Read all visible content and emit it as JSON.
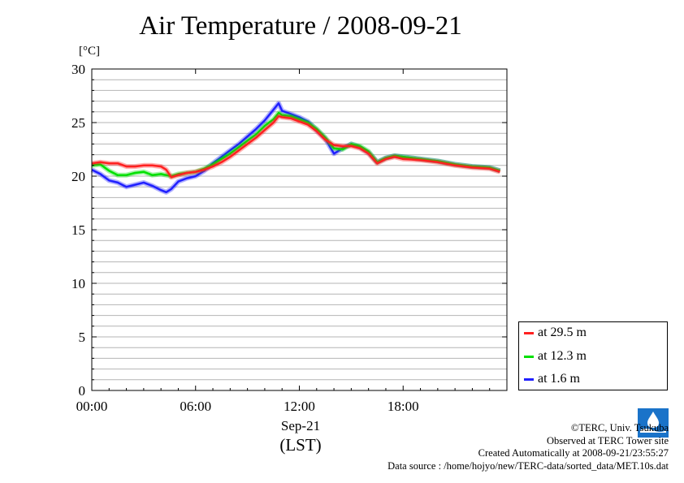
{
  "title": "Air Temperature / 2008-09-21",
  "y_unit": "[°C]",
  "x_label_date": "Sep-21",
  "x_label_tz": "(LST)",
  "legend": [
    {
      "label": "at 29.5 m",
      "color": "#ff2020"
    },
    {
      "label": "at 12.3 m",
      "color": "#00e000"
    },
    {
      "label": "at 1.6 m",
      "color": "#2020ff"
    }
  ],
  "credits": [
    "©TERC, Univ. Tsukuba",
    "Observed at TERC Tower site",
    "Created Automatically at 2008-09-21/23:55:27",
    "Data source : /home/hojyo/new/TERC-data/sorted_data/MET.10s.dat"
  ],
  "logo_icon": "terc-logo-icon",
  "chart_data": {
    "type": "line",
    "title": "Air Temperature / 2008-09-21",
    "ylabel": "[°C]",
    "xlabel": "Sep-21 (LST)",
    "xlim": [
      0,
      24
    ],
    "ylim": [
      0,
      30
    ],
    "x_ticks": [
      {
        "value": 0,
        "label": "00:00"
      },
      {
        "value": 6,
        "label": "06:00"
      },
      {
        "value": 12,
        "label": "12:00"
      },
      {
        "value": 18,
        "label": "18:00"
      }
    ],
    "y_ticks": [
      0,
      5,
      10,
      15,
      20,
      25,
      30
    ],
    "grid": "horizontal every 1°C",
    "legend_position": "bottom-right, outside plot",
    "series": [
      {
        "name": "at 29.5 m",
        "color": "#ff2020",
        "x": [
          0,
          0.5,
          1,
          1.5,
          2,
          2.5,
          3,
          3.5,
          4,
          4.3,
          4.6,
          5,
          5.5,
          6,
          6.5,
          7,
          7.5,
          8,
          8.5,
          9,
          9.5,
          10,
          10.5,
          10.8,
          11,
          11.5,
          12,
          12.5,
          13,
          13.5,
          14,
          14.5,
          15,
          15.5,
          16,
          16.5,
          17,
          17.5,
          18,
          19,
          20,
          21,
          22,
          23,
          23.6
        ],
        "y": [
          21.2,
          21.3,
          21.2,
          21.2,
          20.9,
          20.9,
          21.0,
          21.0,
          20.9,
          20.6,
          19.9,
          20.1,
          20.3,
          20.4,
          20.6,
          20.9,
          21.3,
          21.8,
          22.4,
          23.0,
          23.6,
          24.3,
          25.0,
          25.6,
          25.5,
          25.4,
          25.1,
          24.8,
          24.2,
          23.4,
          22.9,
          22.8,
          22.8,
          22.6,
          22.1,
          21.2,
          21.6,
          21.8,
          21.6,
          21.5,
          21.3,
          21.0,
          20.8,
          20.7,
          20.4
        ]
      },
      {
        "name": "at 12.3 m",
        "color": "#00e000",
        "x": [
          0,
          0.5,
          1,
          1.5,
          2,
          2.5,
          3,
          3.5,
          4,
          4.3,
          4.6,
          5,
          5.5,
          6,
          6.5,
          7,
          7.5,
          8,
          8.5,
          9,
          9.5,
          10,
          10.5,
          10.8,
          11,
          11.5,
          12,
          12.5,
          13,
          13.5,
          14,
          14.5,
          15,
          15.5,
          16,
          16.5,
          17,
          17.5,
          18,
          19,
          20,
          21,
          22,
          23,
          23.6
        ],
        "y": [
          21.0,
          21.1,
          20.5,
          20.1,
          20.1,
          20.3,
          20.4,
          20.1,
          20.2,
          20.1,
          20.0,
          20.2,
          20.3,
          20.4,
          20.7,
          21.1,
          21.6,
          22.1,
          22.7,
          23.3,
          23.9,
          24.7,
          25.3,
          25.9,
          25.7,
          25.6,
          25.3,
          25.0,
          24.4,
          23.6,
          22.6,
          22.5,
          23.0,
          22.8,
          22.3,
          21.3,
          21.7,
          21.9,
          21.8,
          21.6,
          21.4,
          21.1,
          20.9,
          20.8,
          20.5
        ]
      },
      {
        "name": "at 1.6 m",
        "color": "#2020ff",
        "x": [
          0,
          0.5,
          1,
          1.5,
          2,
          2.5,
          3,
          3.5,
          4,
          4.3,
          4.6,
          5,
          5.5,
          6,
          6.5,
          7,
          7.5,
          8,
          8.5,
          9,
          9.5,
          10,
          10.5,
          10.8,
          11,
          11.5,
          12,
          12.5,
          13,
          13.5,
          14,
          14.5,
          15,
          15.5,
          16,
          16.5,
          17,
          17.5,
          18,
          19,
          20,
          21,
          22,
          23,
          23.6
        ],
        "y": [
          20.6,
          20.2,
          19.6,
          19.4,
          19.0,
          19.2,
          19.4,
          19.1,
          18.7,
          18.5,
          18.8,
          19.5,
          19.8,
          20.0,
          20.5,
          21.2,
          21.8,
          22.4,
          23.0,
          23.7,
          24.4,
          25.2,
          26.2,
          26.8,
          26.1,
          25.8,
          25.5,
          25.1,
          24.3,
          23.5,
          22.1,
          22.6,
          23.0,
          22.7,
          22.2,
          21.3,
          21.7,
          21.9,
          21.8,
          21.6,
          21.4,
          21.1,
          20.9,
          20.8,
          20.5
        ]
      }
    ]
  }
}
